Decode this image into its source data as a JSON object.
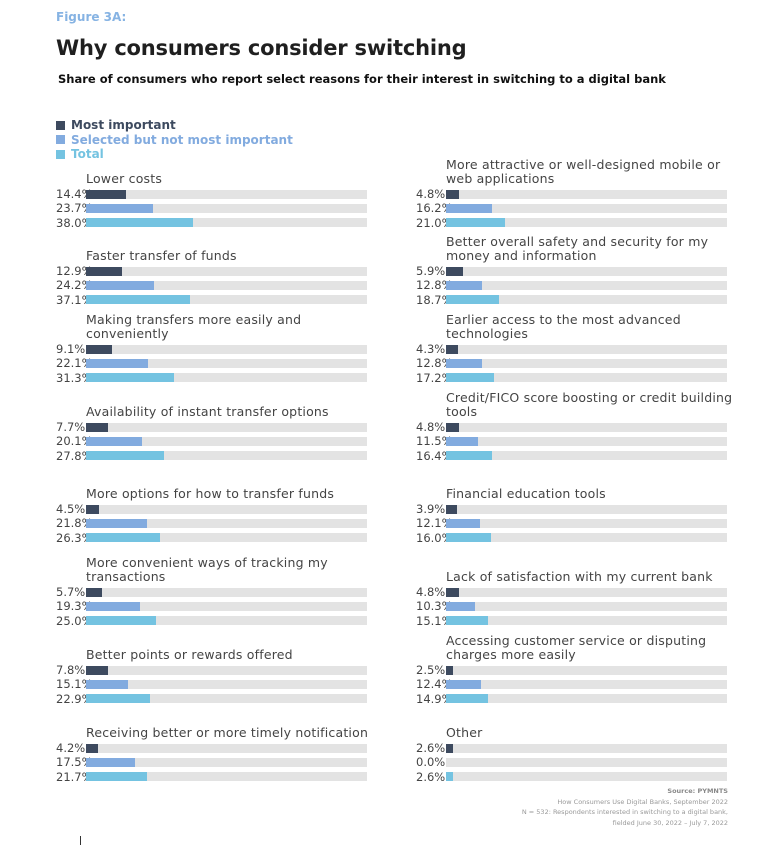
{
  "figure_label": "Figure 3A:",
  "title": "Why consumers consider switching",
  "subtitle": "Share of consumers who report select reasons for their interest in switching to a digital bank",
  "source": {
    "line1": "Source: PYMNTS",
    "line2": "How Consumers Use Digital Banks, September 2022",
    "line3": "N = 532: Respondents interested in switching to a digital bank,",
    "line4": "fielded June 30, 2022 – July 7, 2022"
  },
  "chart_data": {
    "type": "bar",
    "orientation": "horizontal",
    "xlim": [
      0,
      100
    ],
    "unit": "%",
    "legend_placement": "top-left",
    "series": [
      {
        "name": "Most important",
        "color": "#3d4a5f"
      },
      {
        "name": "Selected but not most important",
        "color": "#82abdf"
      },
      {
        "name": "Total",
        "color": "#74c3e1"
      }
    ],
    "track_color": "#e3e3e3",
    "categories": [
      {
        "label": "Lower costs",
        "values": [
          14.4,
          23.7,
          38.0
        ],
        "labels": [
          "14.4%",
          "23.7%",
          "38.0%"
        ]
      },
      {
        "label": "Faster transfer of funds",
        "values": [
          12.9,
          24.2,
          37.1
        ],
        "labels": [
          "12.9%",
          "24.2%",
          "37.1%"
        ]
      },
      {
        "label": "Making transfers more easily and conveniently",
        "values": [
          9.1,
          22.1,
          31.3
        ],
        "labels": [
          "9.1%",
          "22.1%",
          "31.3%"
        ]
      },
      {
        "label": "Availability of instant transfer options",
        "values": [
          7.7,
          20.1,
          27.8
        ],
        "labels": [
          "7.7%",
          "20.1%",
          "27.8%"
        ]
      },
      {
        "label": "More options for how to transfer funds",
        "values": [
          4.5,
          21.8,
          26.3
        ],
        "labels": [
          "4.5%",
          "21.8%",
          "26.3%"
        ]
      },
      {
        "label": "More convenient ways of tracking my transactions",
        "values": [
          5.7,
          19.3,
          25.0
        ],
        "labels": [
          "5.7%",
          "19.3%",
          "25.0%"
        ]
      },
      {
        "label": "Better points or rewards offered",
        "values": [
          7.8,
          15.1,
          22.9
        ],
        "labels": [
          "7.8%",
          "15.1%",
          "22.9%"
        ]
      },
      {
        "label": "Receiving better or more timely notification",
        "values": [
          4.2,
          17.5,
          21.7
        ],
        "labels": [
          "4.2%",
          "17.5%",
          "21.7%"
        ]
      },
      {
        "label": "More attractive or well-designed mobile or web applications",
        "values": [
          4.8,
          16.2,
          21.0
        ],
        "labels": [
          "4.8%",
          "16.2%",
          "21.0%"
        ]
      },
      {
        "label": "Better overall safety and security for my money and information",
        "values": [
          5.9,
          12.8,
          18.7
        ],
        "labels": [
          "5.9%",
          "12.8%",
          "18.7%"
        ]
      },
      {
        "label": "Earlier access to the most advanced technologies",
        "values": [
          4.3,
          12.8,
          17.2
        ],
        "labels": [
          "4.3%",
          "12.8%",
          "17.2%"
        ]
      },
      {
        "label": "Credit/FICO score boosting or credit building tools",
        "values": [
          4.8,
          11.5,
          16.4
        ],
        "labels": [
          "4.8%",
          "11.5%",
          "16.4%"
        ]
      },
      {
        "label": "Financial education tools",
        "values": [
          3.9,
          12.1,
          16.0
        ],
        "labels": [
          "3.9%",
          "12.1%",
          "16.0%"
        ]
      },
      {
        "label": "Lack of satisfaction with my current bank",
        "values": [
          4.8,
          10.3,
          15.1
        ],
        "labels": [
          "4.8%",
          "10.3%",
          "15.1%"
        ]
      },
      {
        "label": "Accessing customer service or disputing charges more easily",
        "values": [
          2.5,
          12.4,
          14.9
        ],
        "labels": [
          "2.5%",
          "12.4%",
          "14.9%"
        ]
      },
      {
        "label": "Other",
        "values": [
          2.6,
          0.0,
          2.6
        ],
        "labels": [
          "2.6%",
          "0.0%",
          "2.6%"
        ]
      }
    ]
  }
}
